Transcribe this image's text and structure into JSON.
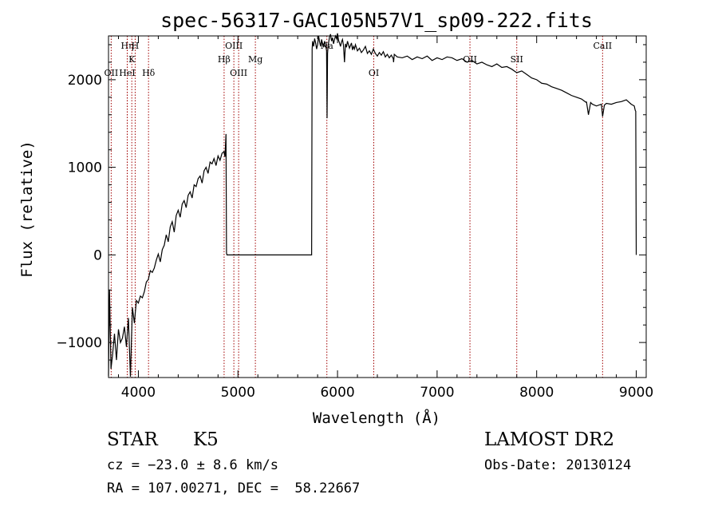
{
  "chart_data": {
    "type": "line",
    "title": "spec-56317-GAC105N57V1_sp09-222.fits",
    "xlabel": "Wavelength (Å)",
    "ylabel": "Flux (relative)",
    "xlim": [
      3700,
      9100
    ],
    "ylim": [
      -1400,
      2500
    ],
    "xticks": [
      4000,
      5000,
      6000,
      7000,
      8000,
      9000
    ],
    "xtick_labels": [
      "4000",
      "5000",
      "6000",
      "7000",
      "8000",
      "9000"
    ],
    "yticks": [
      -1000,
      0,
      1000,
      2000
    ],
    "ytick_labels": [
      "−1000",
      "0",
      "1000",
      "2000"
    ],
    "grid": false,
    "series": [
      {
        "x": [
          3700,
          3710,
          3725,
          3740,
          3760,
          3780,
          3800,
          3820,
          3840,
          3860,
          3880,
          3900,
          3920,
          3940,
          3960,
          3980,
          4000,
          4020,
          4040,
          4060,
          4080,
          4100,
          4120,
          4140,
          4160,
          4180,
          4200,
          4220,
          4240,
          4260,
          4280,
          4300,
          4320,
          4340,
          4360,
          4380,
          4400,
          4420,
          4440,
          4460,
          4480,
          4500,
          4520,
          4540,
          4560,
          4580,
          4600,
          4620,
          4640,
          4660,
          4680,
          4700,
          4720,
          4740,
          4760,
          4780,
          4800,
          4820,
          4840,
          4860,
          4870,
          4880,
          4885,
          4890,
          4895,
          4900,
          5000,
          5200,
          5400,
          5600,
          5740,
          5745,
          5750,
          5760,
          5770,
          5780,
          5790,
          5800,
          5810,
          5820,
          5830,
          5840,
          5850,
          5860,
          5870,
          5880,
          5890,
          5895,
          5900,
          5905,
          5910,
          5920,
          5930,
          5940,
          5950,
          5960,
          5970,
          5980,
          5990,
          6000,
          6010,
          6020,
          6030,
          6040,
          6050,
          6060,
          6070,
          6080,
          6090,
          6100,
          6110,
          6120,
          6130,
          6140,
          6150,
          6160,
          6170,
          6180,
          6200,
          6220,
          6240,
          6260,
          6280,
          6300,
          6320,
          6340,
          6360,
          6380,
          6400,
          6420,
          6440,
          6460,
          6480,
          6500,
          6520,
          6540,
          6560,
          6563,
          6570,
          6600,
          6650,
          6700,
          6750,
          6800,
          6850,
          6900,
          6950,
          7000,
          7050,
          7100,
          7150,
          7200,
          7250,
          7300,
          7350,
          7400,
          7450,
          7500,
          7550,
          7600,
          7650,
          7700,
          7750,
          7800,
          7850,
          7900,
          7950,
          8000,
          8050,
          8100,
          8150,
          8200,
          8250,
          8300,
          8350,
          8400,
          8450,
          8498,
          8500,
          8520,
          8542,
          8560,
          8600,
          8650,
          8662,
          8680,
          8700,
          8750,
          8800,
          8850,
          8900,
          8950,
          8980,
          8990,
          8995,
          9000
        ],
        "y": [
          -1380,
          -400,
          -1300,
          -1150,
          -900,
          -1200,
          -850,
          -1000,
          -950,
          -820,
          -1050,
          -720,
          -1390,
          -600,
          -780,
          -520,
          -550,
          -470,
          -490,
          -420,
          -310,
          -280,
          -180,
          -200,
          -150,
          -60,
          10,
          -80,
          60,
          110,
          230,
          150,
          320,
          380,
          260,
          450,
          510,
          430,
          580,
          620,
          540,
          680,
          720,
          650,
          800,
          780,
          870,
          900,
          820,
          960,
          1000,
          930,
          1060,
          1040,
          1100,
          1020,
          1130,
          1080,
          1160,
          1180,
          1120,
          1380,
          20,
          0,
          0,
          0,
          0,
          0,
          0,
          0,
          0,
          2350,
          2440,
          2380,
          2470,
          2420,
          2350,
          2400,
          2500,
          2430,
          2380,
          2460,
          2410,
          2370,
          2440,
          2400,
          2330,
          1560,
          2300,
          2380,
          2420,
          2490,
          2520,
          2440,
          2480,
          2410,
          2460,
          2500,
          2470,
          2530,
          2450,
          2420,
          2380,
          2430,
          2460,
          2390,
          2200,
          2410,
          2370,
          2440,
          2400,
          2360,
          2390,
          2420,
          2340,
          2380,
          2350,
          2400,
          2330,
          2360,
          2310,
          2340,
          2380,
          2300,
          2330,
          2290,
          2350,
          2300,
          2270,
          2310,
          2280,
          2320,
          2260,
          2290,
          2250,
          2280,
          2240,
          2200,
          2290,
          2260,
          2250,
          2270,
          2230,
          2260,
          2240,
          2270,
          2220,
          2250,
          2230,
          2260,
          2250,
          2220,
          2240,
          2200,
          2220,
          2180,
          2200,
          2170,
          2150,
          2180,
          2140,
          2150,
          2120,
          2080,
          2100,
          2060,
          2020,
          2000,
          1960,
          1950,
          1920,
          1900,
          1880,
          1850,
          1820,
          1800,
          1780,
          1740,
          1750,
          1600,
          1740,
          1720,
          1700,
          1720,
          1580,
          1710,
          1730,
          1720,
          1740,
          1750,
          1770,
          1720,
          1700,
          1650,
          1640,
          0
        ]
      }
    ],
    "line_markers": [
      {
        "label": "Hη",
        "wavelength": 3889,
        "label_row": 1
      },
      {
        "label": "H",
        "wavelength": 3968,
        "label_row": 1
      },
      {
        "label": "K",
        "wavelength": 3934,
        "label_row": 2
      },
      {
        "label": "OII",
        "wavelength": 3727,
        "label_row": 3
      },
      {
        "label": "HeI",
        "wavelength": 3888,
        "label_row": 3
      },
      {
        "label": "Hδ",
        "wavelength": 4102,
        "label_row": 3
      },
      {
        "label": "OIII",
        "wavelength": 4959,
        "label_row": 1
      },
      {
        "label": "Hβ",
        "wavelength": 4861,
        "label_row": 2
      },
      {
        "label": "Mg",
        "wavelength": 5175,
        "label_row": 2
      },
      {
        "label": "OIII",
        "wavelength": 5007,
        "label_row": 3
      },
      {
        "label": "Na",
        "wavelength": 5893,
        "label_row": 1
      },
      {
        "label": "OI",
        "wavelength": 6364,
        "label_row": 3
      },
      {
        "label": "OII",
        "wavelength": 7330,
        "label_row": 2
      },
      {
        "label": "SII",
        "wavelength": 7800,
        "label_row": 2
      },
      {
        "label": "CaII",
        "wavelength": 8662,
        "label_row": 1
      }
    ]
  },
  "info": {
    "object_class": "STAR",
    "subclass": "K5",
    "survey": "LAMOST DR2",
    "cz": "cz = −23.0 ± 8.6 km/s",
    "obs_date": "Obs-Date: 20130124",
    "coords": "RA = 107.00271, DEC =  58.22667"
  },
  "colors": {
    "line": "#000000",
    "marker": "#a00000"
  }
}
